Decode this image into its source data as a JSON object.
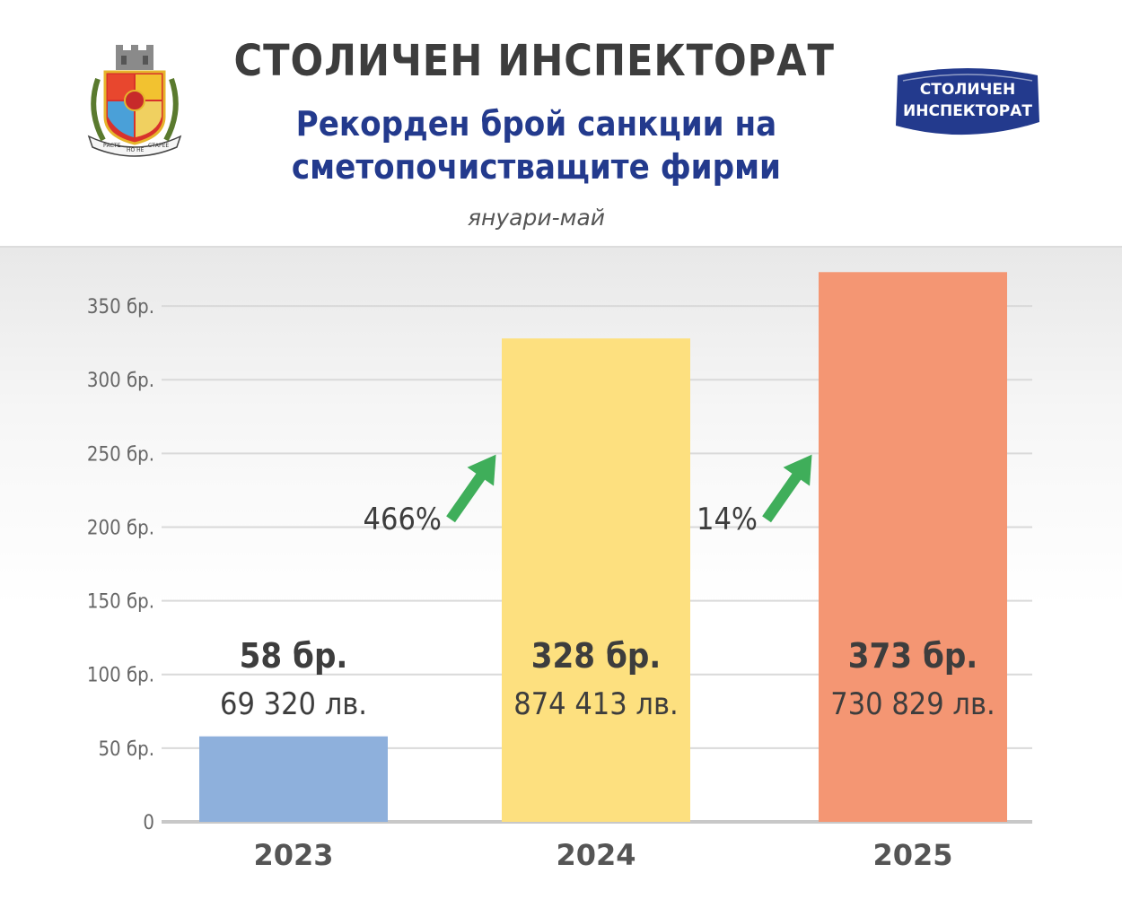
{
  "header": {
    "title": "СТОЛИЧЕН ИНСПЕКТОРАТ",
    "subtitle_line1": "Рекорден брой санкции на",
    "subtitle_line2": "сметопочистващите фирми",
    "period": "януари-май"
  },
  "logo": {
    "line1": "СТОЛИЧЕН",
    "line2": "ИНСПЕКТОРАТ",
    "color": "#233a8d"
  },
  "coat_of_arms": {
    "motto_left": "РАСТЕ",
    "motto_mid": "НО НЕ",
    "motto_right": "СТАРЕЕ"
  },
  "chart_data": {
    "type": "bar",
    "categories": [
      "2023",
      "2024",
      "2025"
    ],
    "values": [
      58,
      328,
      373
    ],
    "colors": [
      "#8eb0dc",
      "#fde07f",
      "#f49673"
    ],
    "count_labels": [
      "58 бр.",
      "328 бр.",
      "373 бр."
    ],
    "amount_labels": [
      "69 320 лв.",
      "874 413 лв.",
      "730 829 лв."
    ],
    "growth": [
      {
        "label": "466%"
      },
      {
        "label": "14%"
      }
    ],
    "ylim": [
      0,
      375
    ],
    "yticks": [
      0,
      50,
      100,
      150,
      200,
      250,
      300,
      350
    ],
    "ytick_labels": [
      "0",
      "50 бр.",
      "100 бр.",
      "150 бр.",
      "200 бр.",
      "250 бр.",
      "300 бр.",
      "350 бр."
    ],
    "grid": true,
    "arrow_color": "#3fae5a"
  }
}
